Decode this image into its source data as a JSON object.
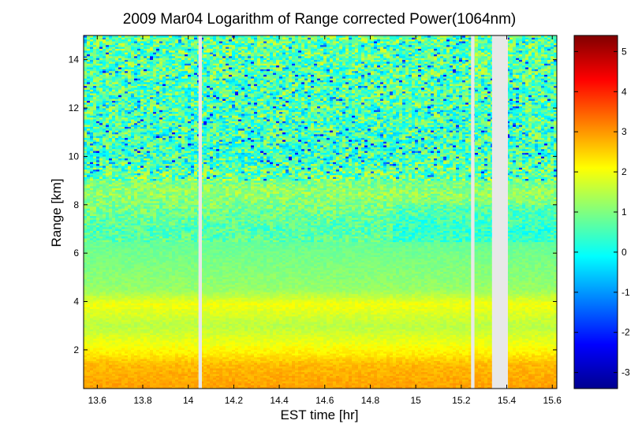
{
  "chart_data": {
    "type": "heatmap",
    "title": "2009 Mar04  Logarithm of Range corrected Power(1064nm)",
    "xlabel": "EST time [hr]",
    "ylabel": "Range [km]",
    "xlim": [
      13.54,
      15.62
    ],
    "ylim": [
      0.4,
      15.0
    ],
    "x_ticks": [
      13.6,
      13.8,
      14,
      14.2,
      14.4,
      14.6,
      14.8,
      15,
      15.2,
      15.4,
      15.6
    ],
    "x_tick_labels": [
      "13.6",
      "13.8",
      "14",
      "14.2",
      "14.4",
      "14.6",
      "14.8",
      "15",
      "15.2",
      "15.4",
      "15.6"
    ],
    "y_ticks": [
      2,
      4,
      6,
      8,
      10,
      12,
      14
    ],
    "y_tick_labels": [
      "2",
      "4",
      "6",
      "8",
      "10",
      "12",
      "14"
    ],
    "colorbar": {
      "colormap": "jet",
      "clim": [
        -3.4,
        5.4
      ],
      "ticks": [
        -3,
        -2,
        -1,
        0,
        1,
        2,
        3,
        4,
        5
      ],
      "tick_labels": [
        "-3",
        "-2",
        "-1",
        "0",
        "1",
        "2",
        "3",
        "4",
        "5"
      ]
    },
    "data_gaps_hr": [
      [
        14.045,
        14.06
      ],
      [
        15.243,
        15.258
      ],
      [
        15.335,
        15.405
      ]
    ],
    "gap_color": "#e8e8e8",
    "range_profile_approx": [
      {
        "range_km": 0.5,
        "value": 2.9
      },
      {
        "range_km": 1.4,
        "value": 2.7
      },
      {
        "range_km": 1.9,
        "value": 2.2
      },
      {
        "range_km": 3.0,
        "value": 1.5
      },
      {
        "range_km": 3.9,
        "value": 2.0
      },
      {
        "range_km": 4.5,
        "value": 1.2
      },
      {
        "range_km": 6.0,
        "value": 0.9
      },
      {
        "range_km": 7.0,
        "value": 0.6
      },
      {
        "range_km": 8.5,
        "value": 1.2
      },
      {
        "range_km": 10.0,
        "value": 0.5
      },
      {
        "range_km": 15.0,
        "value": 0.8
      }
    ]
  }
}
